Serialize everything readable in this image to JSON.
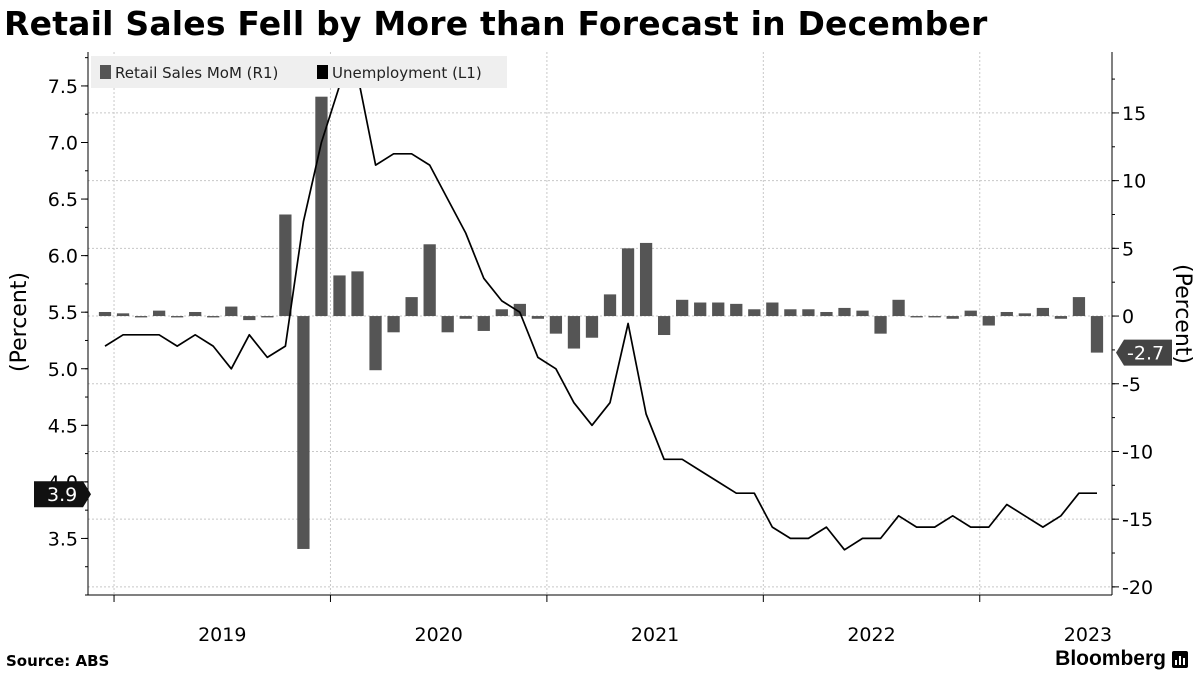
{
  "title": "Retail Sales Fell by More than Forecast in December",
  "source": "Source: ABS",
  "brand": "Bloomberg",
  "chart_data": {
    "type": "bar+line",
    "title": "Retail Sales Fell by More than Forecast in December",
    "legend": [
      {
        "label": "Retail Sales MoM (R1)",
        "color": "#555555",
        "marker": "bar"
      },
      {
        "label": "Unemployment (L1)",
        "color": "#000000",
        "marker": "line"
      }
    ],
    "legend_position": "top-left",
    "x_labels": [
      "2019",
      "2020",
      "2021",
      "2022",
      "2023"
    ],
    "left_axis": {
      "label": "(Percent)",
      "ylim": [
        3.0,
        7.8
      ],
      "ticks": [
        "3.5",
        "4.0",
        "4.5",
        "5.0",
        "5.5",
        "6.0",
        "6.5",
        "7.0",
        "7.5"
      ],
      "tick_values": [
        3.5,
        4.0,
        4.5,
        5.0,
        5.5,
        6.0,
        6.5,
        7.0,
        7.5
      ]
    },
    "right_axis": {
      "label": "(Percent)",
      "ylim": [
        -20.6,
        19.5
      ],
      "ticks": [
        "-20",
        "-15",
        "-10",
        "-5",
        "0",
        "5",
        "10",
        "15"
      ],
      "tick_values": [
        -20,
        -15,
        -10,
        -5,
        0,
        5,
        10,
        15
      ]
    },
    "start": "2018-12",
    "series": [
      {
        "name": "Retail Sales MoM (R1)",
        "axis": "right",
        "values": [
          0.3,
          0.2,
          -0.1,
          0.4,
          -0.1,
          0.3,
          -0.1,
          0.7,
          -0.3,
          -0.1,
          7.5,
          -17.2,
          16.2,
          3.0,
          3.3,
          -4.0,
          -1.2,
          1.4,
          5.3,
          -1.2,
          -0.2,
          -1.1,
          0.5,
          0.9,
          -0.2,
          -1.3,
          -2.4,
          -1.6,
          1.6,
          5.0,
          5.4,
          -1.4,
          1.2,
          1.0,
          1.0,
          0.9,
          0.5,
          1.0,
          0.5,
          0.5,
          0.3,
          0.6,
          0.4,
          -1.3,
          1.2,
          -0.1,
          -0.1,
          -0.2,
          0.4,
          -0.7,
          0.3,
          0.2,
          0.6,
          -0.2,
          1.4,
          -2.7
        ]
      },
      {
        "name": "Unemployment (L1)",
        "axis": "left",
        "values": [
          5.2,
          5.3,
          5.3,
          5.3,
          5.2,
          5.3,
          5.2,
          5.0,
          5.3,
          5.1,
          5.2,
          6.3,
          7.0,
          7.5,
          7.6,
          6.8,
          6.9,
          6.9,
          6.8,
          6.5,
          6.2,
          5.8,
          5.6,
          5.5,
          5.1,
          5.0,
          4.7,
          4.5,
          4.7,
          5.4,
          4.6,
          4.2,
          4.2,
          4.1,
          4.0,
          3.9,
          3.9,
          3.6,
          3.5,
          3.5,
          3.6,
          3.4,
          3.5,
          3.5,
          3.7,
          3.6,
          3.6,
          3.7,
          3.6,
          3.6,
          3.8,
          3.7,
          3.6,
          3.7,
          3.9,
          3.9
        ]
      }
    ],
    "callouts": [
      {
        "axis": "left",
        "text": "3.9",
        "value": 3.9
      },
      {
        "axis": "right",
        "text": "-2.7",
        "value": -2.7
      }
    ]
  }
}
